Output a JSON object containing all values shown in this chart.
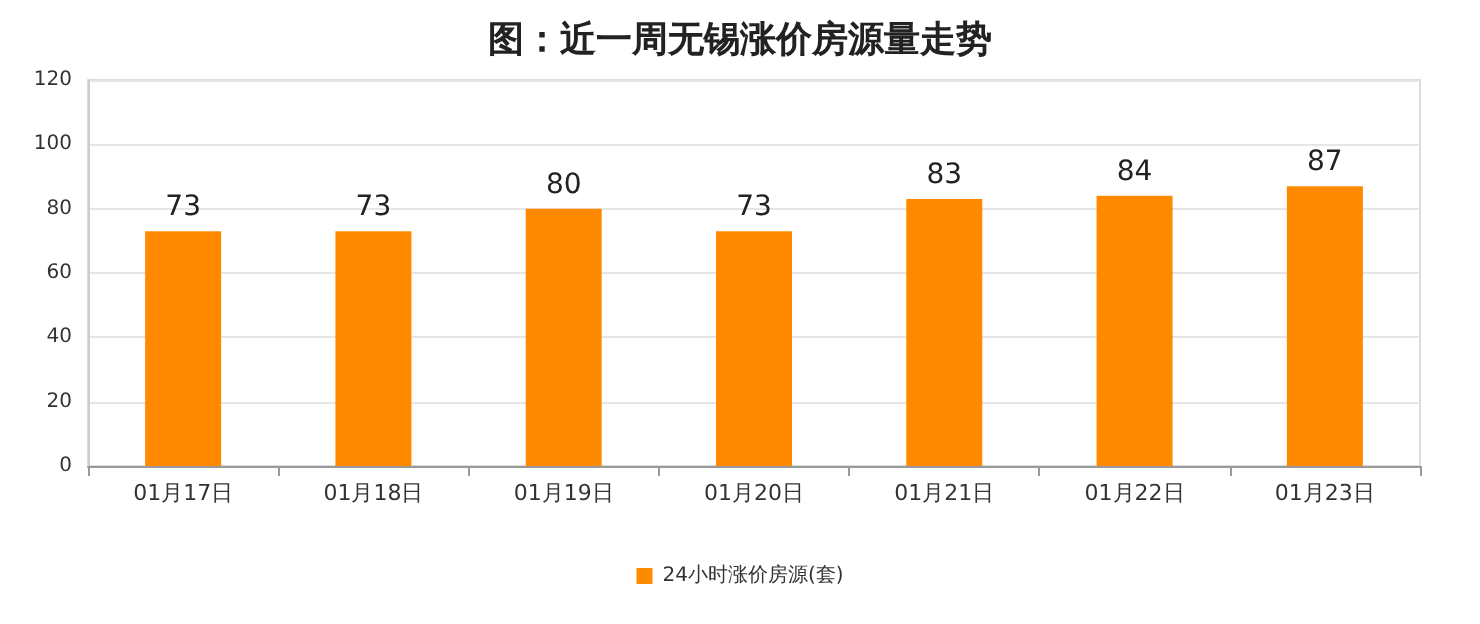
{
  "chart_data": {
    "type": "bar",
    "title": "图：近一周无锡涨价房源量走势",
    "categories": [
      "01月17日",
      "01月18日",
      "01月19日",
      "01月20日",
      "01月21日",
      "01月22日",
      "01月23日"
    ],
    "series": [
      {
        "name": "24小时涨价房源(套)",
        "color": "#ff8a00",
        "values": [
          73,
          73,
          80,
          73,
          83,
          84,
          87
        ]
      }
    ],
    "ylim": [
      0,
      120
    ],
    "yticks": [
      0,
      20,
      40,
      60,
      80,
      100,
      120
    ],
    "grid": "y",
    "legend": "bottom",
    "data_labels": true
  }
}
